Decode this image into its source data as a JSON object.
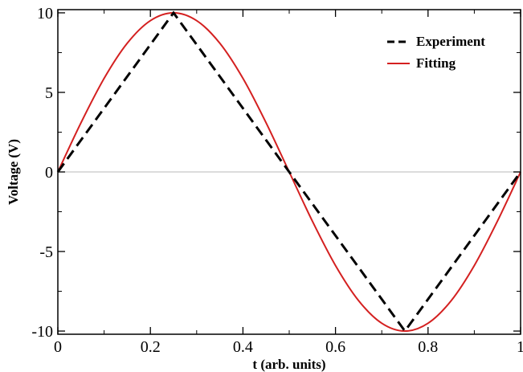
{
  "chart_data": {
    "type": "line",
    "xlabel": "t (arb. units)",
    "ylabel": "Voltage (V)",
    "xlim": [
      0,
      1
    ],
    "ylim": [
      -10.2,
      10.2
    ],
    "x_ticks": [
      0,
      0.2,
      0.4,
      0.6,
      0.8,
      1
    ],
    "x_tick_labels": [
      "0",
      "0.2",
      "0.4",
      "0.6",
      "0.8",
      "1"
    ],
    "y_ticks": [
      -10,
      -5,
      0,
      5,
      10
    ],
    "y_tick_labels": [
      "-10",
      "-5",
      "0",
      "5",
      "10"
    ],
    "zero_line": true,
    "legend_position": "top-right",
    "series": [
      {
        "name": "Experiment",
        "style": "dashed",
        "color": "#000000",
        "x": [
          0,
          0.25,
          0.5,
          0.75,
          1.0
        ],
        "y": [
          0,
          10,
          0,
          -10,
          0
        ]
      },
      {
        "name": "Fitting",
        "style": "solid",
        "color": "#d42020",
        "x": [
          0,
          0.05,
          0.1,
          0.15,
          0.2,
          0.25,
          0.3,
          0.35,
          0.4,
          0.45,
          0.5,
          0.55,
          0.6,
          0.65,
          0.7,
          0.75,
          0.8,
          0.85,
          0.9,
          0.95,
          1.0
        ],
        "y": [
          0,
          3.09,
          5.88,
          8.09,
          9.51,
          10,
          9.51,
          8.09,
          5.88,
          3.09,
          0,
          -3.09,
          -5.88,
          -8.09,
          -9.51,
          -10,
          -9.51,
          -8.09,
          -5.88,
          -3.09,
          0
        ]
      }
    ]
  }
}
